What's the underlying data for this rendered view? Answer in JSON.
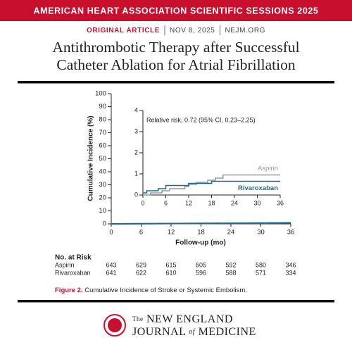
{
  "header": {
    "banner": "AMERICAN HEART ASSOCIATION SCIENTIFIC SESSIONS 2025",
    "section": "ORIGINAL ARTICLE",
    "date": "NOV 8, 2025",
    "site": "NEJM.ORG",
    "title": [
      "Antithrombotic Therapy after Successful",
      "Catheter Ablation for Atrial Fibrillation"
    ]
  },
  "chart_data": [
    {
      "type": "line",
      "xlabel": "Follow-up (mo)",
      "ylabel": "Cumulative Incidence (%)",
      "xlim": [
        0,
        36
      ],
      "xticks": [
        0,
        6,
        12,
        18,
        24,
        30,
        36
      ],
      "ylim": [
        0,
        100
      ],
      "yticks": [
        0,
        10,
        20,
        30,
        40,
        50,
        60,
        70,
        80,
        90,
        100
      ],
      "series": [
        {
          "color": "#9a9a9a",
          "x": [
            0,
            36
          ],
          "values": [
            0,
            0.95
          ]
        },
        {
          "color": "#1f6a8a",
          "x": [
            0,
            36
          ],
          "values": [
            0,
            0.65
          ]
        }
      ]
    },
    {
      "type": "step",
      "annotation": "Relative risk, 0.72 (95% CI, 0.23–2.25)",
      "xlim": [
        0,
        36
      ],
      "xticks": [
        0,
        6,
        12,
        18,
        24,
        30,
        36
      ],
      "ylim": [
        0,
        4
      ],
      "yticks": [
        0,
        1,
        2,
        3,
        4
      ],
      "series": [
        {
          "name": "Aspirin",
          "color": "#9a9a9a",
          "x": [
            0,
            2,
            5,
            7,
            11,
            12,
            14,
            17,
            19,
            21,
            36
          ],
          "values": [
            0,
            0.1,
            0.2,
            0.3,
            0.4,
            0.5,
            0.6,
            0.7,
            0.8,
            0.95,
            0.95
          ]
        },
        {
          "name": "Rivaroxaban",
          "color": "#1f6a8a",
          "x": [
            0,
            1,
            4,
            6,
            12,
            18,
            36
          ],
          "values": [
            0.1,
            0.2,
            0.3,
            0.45,
            0.55,
            0.65,
            0.65
          ]
        }
      ]
    }
  ],
  "risk_table": {
    "title": "No. at Risk",
    "rows": [
      {
        "name": "Aspirin",
        "values": [
          643,
          629,
          615,
          605,
          592,
          580,
          346
        ]
      },
      {
        "name": "Rivaroxaban",
        "values": [
          641,
          622,
          610,
          596,
          588,
          571,
          334
        ]
      }
    ]
  },
  "caption": {
    "label": "Figure 2.",
    "text": "Cumulative Incidence of Stroke or Systemic Embolism."
  },
  "footer": {
    "the": "The",
    "line1": "NEW ENGLAND",
    "journal": "JOURNAL",
    "of": "of",
    "medicine": "MEDICINE"
  }
}
